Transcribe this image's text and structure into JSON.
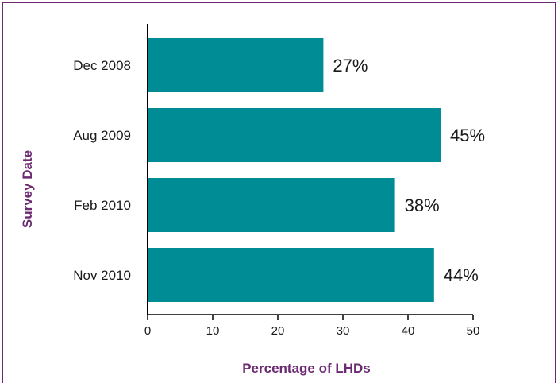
{
  "colors": {
    "bar": "#008C95",
    "frame": "#6B2A72",
    "axis_title": "#6B2A72",
    "axis": "#000000"
  },
  "chart_data": {
    "type": "bar",
    "orientation": "horizontal",
    "categories": [
      "Dec 2008",
      "Aug 2009",
      "Feb 2010",
      "Nov 2010"
    ],
    "values": [
      27,
      45,
      38,
      44
    ],
    "data_labels": [
      "27%",
      "45%",
      "38%",
      "44%"
    ],
    "xlabel": "Percentage of LHDs",
    "ylabel": "Survey Date",
    "xlim": [
      0,
      50
    ],
    "xticks": [
      0,
      10,
      20,
      30,
      40,
      50
    ],
    "grid": false,
    "legend": "none"
  }
}
